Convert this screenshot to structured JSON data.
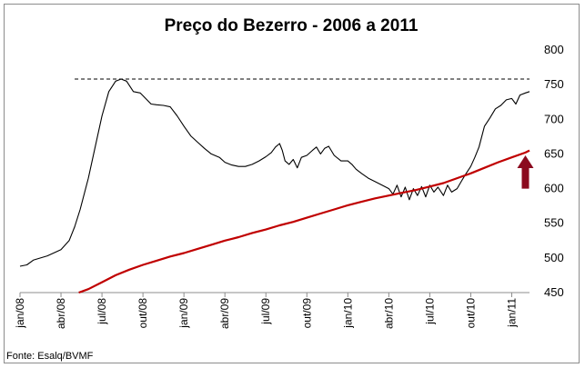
{
  "chart_data": {
    "type": "line",
    "title": "Preço do Bezerro - 2006 a 2011",
    "xlabel": "",
    "ylabel": "",
    "source": "Fonte: Esalq/BVMF",
    "x_tick_labels": [
      "jan/08",
      "abr/08",
      "jul/08",
      "out/08",
      "jan/09",
      "abr/09",
      "jul/09",
      "out/09",
      "jan/10",
      "abr/10",
      "jul/10",
      "out/10",
      "jan/11"
    ],
    "y_tick_labels": [
      "450",
      "500",
      "550",
      "600",
      "650",
      "700",
      "750",
      "800"
    ],
    "ylim": [
      450,
      800
    ],
    "y_axis_position": "right",
    "x_unit": "month index from jan/08",
    "xlim": [
      0,
      37.3
    ],
    "grid": false,
    "legend": "none",
    "reference_line": {
      "value": 758,
      "style": "dashed",
      "x_start": 4,
      "x_end": 37.3
    },
    "annotation": {
      "type": "arrow-up",
      "x": 37,
      "y_tip": 648,
      "y_tail": 600,
      "color": "#8b0a1e"
    },
    "series": [
      {
        "color": "#000000",
        "points": [
          [
            0,
            488
          ],
          [
            0.5,
            490
          ],
          [
            1,
            497
          ],
          [
            2,
            503
          ],
          [
            3,
            512
          ],
          [
            3.6,
            525
          ],
          [
            4,
            545
          ],
          [
            4.4,
            570
          ],
          [
            5,
            615
          ],
          [
            5.5,
            660
          ],
          [
            6,
            705
          ],
          [
            6.5,
            740
          ],
          [
            7,
            755
          ],
          [
            7.4,
            758
          ],
          [
            7.8,
            755
          ],
          [
            8.3,
            740
          ],
          [
            8.8,
            738
          ],
          [
            9.2,
            730
          ],
          [
            9.6,
            722
          ],
          [
            10,
            721
          ],
          [
            10.5,
            720
          ],
          [
            11,
            718
          ],
          [
            11.5,
            705
          ],
          [
            12,
            690
          ],
          [
            12.5,
            676
          ],
          [
            13,
            667
          ],
          [
            13.5,
            658
          ],
          [
            14,
            650
          ],
          [
            14.6,
            645
          ],
          [
            15,
            638
          ],
          [
            15.5,
            634
          ],
          [
            16,
            632
          ],
          [
            16.5,
            632
          ],
          [
            17,
            635
          ],
          [
            17.5,
            640
          ],
          [
            18,
            646
          ],
          [
            18.4,
            652
          ],
          [
            18.7,
            660
          ],
          [
            19,
            665
          ],
          [
            19.2,
            655
          ],
          [
            19.4,
            640
          ],
          [
            19.7,
            635
          ],
          [
            20,
            642
          ],
          [
            20.3,
            630
          ],
          [
            20.6,
            645
          ],
          [
            21,
            648
          ],
          [
            21.4,
            655
          ],
          [
            21.7,
            660
          ],
          [
            22,
            650
          ],
          [
            22.3,
            658
          ],
          [
            22.6,
            661
          ],
          [
            23,
            648
          ],
          [
            23.5,
            640
          ],
          [
            24,
            640
          ],
          [
            24.3,
            635
          ],
          [
            24.6,
            628
          ],
          [
            25,
            622
          ],
          [
            25.5,
            615
          ],
          [
            26,
            610
          ],
          [
            26.5,
            605
          ],
          [
            27,
            600
          ],
          [
            27.3,
            592
          ],
          [
            27.6,
            605
          ],
          [
            27.9,
            588
          ],
          [
            28.2,
            602
          ],
          [
            28.5,
            584
          ],
          [
            28.8,
            600
          ],
          [
            29.1,
            590
          ],
          [
            29.4,
            603
          ],
          [
            29.7,
            588
          ],
          [
            30,
            605
          ],
          [
            30.3,
            595
          ],
          [
            30.6,
            602
          ],
          [
            31,
            590
          ],
          [
            31.3,
            605
          ],
          [
            31.6,
            595
          ],
          [
            32,
            600
          ],
          [
            32.3,
            610
          ],
          [
            32.6,
            620
          ],
          [
            33,
            632
          ],
          [
            33.3,
            645
          ],
          [
            33.6,
            660
          ],
          [
            34,
            690
          ],
          [
            34.4,
            702
          ],
          [
            34.8,
            715
          ],
          [
            35.2,
            720
          ],
          [
            35.6,
            728
          ],
          [
            36,
            730
          ],
          [
            36.3,
            722
          ],
          [
            36.6,
            735
          ],
          [
            37,
            738
          ],
          [
            37.3,
            740
          ]
        ],
        "note": "values read on the graph from jan/08 onward"
      },
      {
        "color": "#c00000",
        "points": [
          [
            4.3,
            450
          ],
          [
            5,
            455
          ],
          [
            6,
            465
          ],
          [
            7,
            475
          ],
          [
            8,
            483
          ],
          [
            9,
            490
          ],
          [
            10,
            496
          ],
          [
            11,
            502
          ],
          [
            12,
            507
          ],
          [
            13,
            513
          ],
          [
            14,
            519
          ],
          [
            15,
            525
          ],
          [
            16,
            530
          ],
          [
            17,
            536
          ],
          [
            18,
            541
          ],
          [
            19,
            547
          ],
          [
            20,
            552
          ],
          [
            21,
            558
          ],
          [
            22,
            564
          ],
          [
            23,
            570
          ],
          [
            24,
            576
          ],
          [
            25,
            581
          ],
          [
            26,
            586
          ],
          [
            27,
            590
          ],
          [
            28,
            594
          ],
          [
            29,
            598
          ],
          [
            30,
            603
          ],
          [
            31,
            608
          ],
          [
            32,
            615
          ],
          [
            33,
            622
          ],
          [
            34,
            630
          ],
          [
            35,
            638
          ],
          [
            36,
            645
          ],
          [
            37,
            652
          ],
          [
            37.3,
            655
          ]
        ]
      }
    ]
  }
}
